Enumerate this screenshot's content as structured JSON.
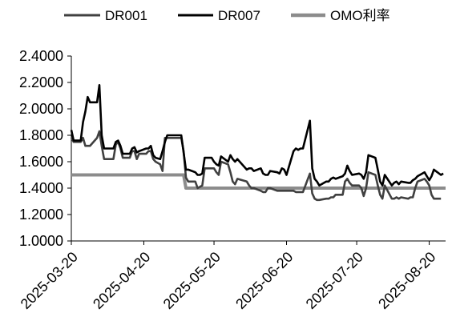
{
  "chart_data": {
    "type": "line",
    "title": "",
    "xlabel": "",
    "ylabel": "",
    "x_start": "2025-03-20",
    "x_end": "2025-08-27",
    "x_tick_labels": [
      "2025-03-20",
      "2025-04-20",
      "2025-05-20",
      "2025-06-20",
      "2025-07-20",
      "2025-08-20"
    ],
    "ylim": [
      1.0,
      2.4
    ],
    "y_tick_labels": [
      "1.0000",
      "1.2000",
      "1.4000",
      "1.6000",
      "1.8000",
      "2.0000",
      "2.2000",
      "2.4000"
    ],
    "grid": false,
    "legend": "top",
    "series": [
      {
        "name": "DR001",
        "color": "#404040",
        "points": [
          [
            "2025-03-20",
            1.78
          ],
          [
            "2025-03-21",
            1.75
          ],
          [
            "2025-03-24",
            1.75
          ],
          [
            "2025-03-25",
            1.78
          ],
          [
            "2025-03-26",
            1.72
          ],
          [
            "2025-03-27",
            1.72
          ],
          [
            "2025-03-28",
            1.72
          ],
          [
            "2025-03-31",
            1.78
          ],
          [
            "2025-04-01",
            1.83
          ],
          [
            "2025-04-02",
            1.72
          ],
          [
            "2025-04-03",
            1.62
          ],
          [
            "2025-04-07",
            1.62
          ],
          [
            "2025-04-08",
            1.73
          ],
          [
            "2025-04-09",
            1.75
          ],
          [
            "2025-04-10",
            1.7
          ],
          [
            "2025-04-11",
            1.63
          ],
          [
            "2025-04-14",
            1.63
          ],
          [
            "2025-04-15",
            1.68
          ],
          [
            "2025-04-16",
            1.68
          ],
          [
            "2025-04-17",
            1.62
          ],
          [
            "2025-04-18",
            1.66
          ],
          [
            "2025-04-21",
            1.66
          ],
          [
            "2025-04-22",
            1.68
          ],
          [
            "2025-04-23",
            1.68
          ],
          [
            "2025-04-24",
            1.62
          ],
          [
            "2025-04-25",
            1.6
          ],
          [
            "2025-04-27",
            1.58
          ],
          [
            "2025-04-28",
            1.53
          ],
          [
            "2025-04-29",
            1.78
          ],
          [
            "2025-04-30",
            1.78
          ],
          [
            "2025-05-06",
            1.78
          ],
          [
            "2025-05-07",
            1.68
          ],
          [
            "2025-05-08",
            1.48
          ],
          [
            "2025-05-09",
            1.45
          ],
          [
            "2025-05-12",
            1.45
          ],
          [
            "2025-05-13",
            1.4
          ],
          [
            "2025-05-14",
            1.41
          ],
          [
            "2025-05-15",
            1.42
          ],
          [
            "2025-05-16",
            1.55
          ],
          [
            "2025-05-19",
            1.55
          ],
          [
            "2025-05-20",
            1.55
          ],
          [
            "2025-05-21",
            1.52
          ],
          [
            "2025-05-22",
            1.5
          ],
          [
            "2025-05-23",
            1.6
          ],
          [
            "2025-05-26",
            1.58
          ],
          [
            "2025-05-27",
            1.52
          ],
          [
            "2025-05-28",
            1.45
          ],
          [
            "2025-05-29",
            1.43
          ],
          [
            "2025-05-30",
            1.47
          ],
          [
            "2025-06-03",
            1.45
          ],
          [
            "2025-06-04",
            1.42
          ],
          [
            "2025-06-05",
            1.4
          ],
          [
            "2025-06-06",
            1.4
          ],
          [
            "2025-06-09",
            1.38
          ],
          [
            "2025-06-10",
            1.37
          ],
          [
            "2025-06-11",
            1.37
          ],
          [
            "2025-06-12",
            1.4
          ],
          [
            "2025-06-13",
            1.4
          ],
          [
            "2025-06-16",
            1.38
          ],
          [
            "2025-06-17",
            1.38
          ],
          [
            "2025-06-18",
            1.38
          ],
          [
            "2025-06-19",
            1.38
          ],
          [
            "2025-06-20",
            1.38
          ],
          [
            "2025-06-23",
            1.38
          ],
          [
            "2025-06-24",
            1.37
          ],
          [
            "2025-06-25",
            1.37
          ],
          [
            "2025-06-26",
            1.37
          ],
          [
            "2025-06-27",
            1.37
          ],
          [
            "2025-06-30",
            1.51
          ],
          [
            "2025-07-01",
            1.36
          ],
          [
            "2025-07-02",
            1.32
          ],
          [
            "2025-07-03",
            1.31
          ],
          [
            "2025-07-04",
            1.31
          ],
          [
            "2025-07-07",
            1.32
          ],
          [
            "2025-07-08",
            1.32
          ],
          [
            "2025-07-09",
            1.33
          ],
          [
            "2025-07-10",
            1.33
          ],
          [
            "2025-07-11",
            1.35
          ],
          [
            "2025-07-14",
            1.35
          ],
          [
            "2025-07-15",
            1.45
          ],
          [
            "2025-07-16",
            1.47
          ],
          [
            "2025-07-17",
            1.44
          ],
          [
            "2025-07-18",
            1.42
          ],
          [
            "2025-07-21",
            1.42
          ],
          [
            "2025-07-22",
            1.4
          ],
          [
            "2025-07-23",
            1.34
          ],
          [
            "2025-07-24",
            1.4
          ],
          [
            "2025-07-25",
            1.52
          ],
          [
            "2025-07-28",
            1.5
          ],
          [
            "2025-07-29",
            1.42
          ],
          [
            "2025-07-30",
            1.35
          ],
          [
            "2025-07-31",
            1.32
          ],
          [
            "2025-08-01",
            1.42
          ],
          [
            "2025-08-04",
            1.32
          ],
          [
            "2025-08-05",
            1.32
          ],
          [
            "2025-08-06",
            1.33
          ],
          [
            "2025-08-07",
            1.32
          ],
          [
            "2025-08-08",
            1.33
          ],
          [
            "2025-08-11",
            1.32
          ],
          [
            "2025-08-12",
            1.33
          ],
          [
            "2025-08-13",
            1.33
          ],
          [
            "2025-08-14",
            1.4
          ],
          [
            "2025-08-15",
            1.45
          ],
          [
            "2025-08-18",
            1.47
          ],
          [
            "2025-08-19",
            1.45
          ],
          [
            "2025-08-20",
            1.42
          ],
          [
            "2025-08-21",
            1.35
          ],
          [
            "2025-08-22",
            1.32
          ],
          [
            "2025-08-25",
            1.32
          ]
        ]
      },
      {
        "name": "DR007",
        "color": "#000000",
        "points": [
          [
            "2025-03-20",
            1.84
          ],
          [
            "2025-03-21",
            1.76
          ],
          [
            "2025-03-24",
            1.76
          ],
          [
            "2025-03-25",
            1.9
          ],
          [
            "2025-03-26",
            1.98
          ],
          [
            "2025-03-27",
            2.09
          ],
          [
            "2025-03-28",
            2.05
          ],
          [
            "2025-03-31",
            2.05
          ],
          [
            "2025-04-01",
            2.18
          ],
          [
            "2025-04-02",
            1.8
          ],
          [
            "2025-04-03",
            1.7
          ],
          [
            "2025-04-07",
            1.7
          ],
          [
            "2025-04-08",
            1.75
          ],
          [
            "2025-04-09",
            1.76
          ],
          [
            "2025-04-10",
            1.72
          ],
          [
            "2025-04-11",
            1.66
          ],
          [
            "2025-04-14",
            1.66
          ],
          [
            "2025-04-15",
            1.7
          ],
          [
            "2025-04-16",
            1.71
          ],
          [
            "2025-04-17",
            1.67
          ],
          [
            "2025-04-18",
            1.68
          ],
          [
            "2025-04-21",
            1.7
          ],
          [
            "2025-04-22",
            1.7
          ],
          [
            "2025-04-23",
            1.72
          ],
          [
            "2025-04-24",
            1.65
          ],
          [
            "2025-04-25",
            1.63
          ],
          [
            "2025-04-27",
            1.62
          ],
          [
            "2025-04-28",
            1.68
          ],
          [
            "2025-04-29",
            1.75
          ],
          [
            "2025-04-30",
            1.8
          ],
          [
            "2025-05-06",
            1.8
          ],
          [
            "2025-05-07",
            1.67
          ],
          [
            "2025-05-08",
            1.54
          ],
          [
            "2025-05-09",
            1.54
          ],
          [
            "2025-05-12",
            1.52
          ],
          [
            "2025-05-13",
            1.5
          ],
          [
            "2025-05-14",
            1.5
          ],
          [
            "2025-05-15",
            1.51
          ],
          [
            "2025-05-16",
            1.63
          ],
          [
            "2025-05-19",
            1.63
          ],
          [
            "2025-05-20",
            1.6
          ],
          [
            "2025-05-21",
            1.58
          ],
          [
            "2025-05-22",
            1.57
          ],
          [
            "2025-05-23",
            1.64
          ],
          [
            "2025-05-26",
            1.6
          ],
          [
            "2025-05-27",
            1.65
          ],
          [
            "2025-05-28",
            1.62
          ],
          [
            "2025-05-29",
            1.6
          ],
          [
            "2025-05-30",
            1.62
          ],
          [
            "2025-06-03",
            1.54
          ],
          [
            "2025-06-04",
            1.55
          ],
          [
            "2025-06-05",
            1.55
          ],
          [
            "2025-06-06",
            1.53
          ],
          [
            "2025-06-09",
            1.55
          ],
          [
            "2025-06-10",
            1.51
          ],
          [
            "2025-06-11",
            1.5
          ],
          [
            "2025-06-12",
            1.5
          ],
          [
            "2025-06-13",
            1.53
          ],
          [
            "2025-06-16",
            1.52
          ],
          [
            "2025-06-17",
            1.51
          ],
          [
            "2025-06-18",
            1.55
          ],
          [
            "2025-06-19",
            1.54
          ],
          [
            "2025-06-20",
            1.5
          ],
          [
            "2025-06-23",
            1.68
          ],
          [
            "2025-06-24",
            1.7
          ],
          [
            "2025-06-25",
            1.69
          ],
          [
            "2025-06-26",
            1.7
          ],
          [
            "2025-06-27",
            1.7
          ],
          [
            "2025-06-30",
            1.91
          ],
          [
            "2025-07-01",
            1.55
          ],
          [
            "2025-07-02",
            1.47
          ],
          [
            "2025-07-03",
            1.45
          ],
          [
            "2025-07-04",
            1.42
          ],
          [
            "2025-07-07",
            1.45
          ],
          [
            "2025-07-08",
            1.45
          ],
          [
            "2025-07-09",
            1.47
          ],
          [
            "2025-07-10",
            1.48
          ],
          [
            "2025-07-11",
            1.47
          ],
          [
            "2025-07-14",
            1.49
          ],
          [
            "2025-07-15",
            1.51
          ],
          [
            "2025-07-16",
            1.57
          ],
          [
            "2025-07-17",
            1.53
          ],
          [
            "2025-07-18",
            1.5
          ],
          [
            "2025-07-21",
            1.51
          ],
          [
            "2025-07-22",
            1.5
          ],
          [
            "2025-07-23",
            1.47
          ],
          [
            "2025-07-24",
            1.52
          ],
          [
            "2025-07-25",
            1.65
          ],
          [
            "2025-07-28",
            1.63
          ],
          [
            "2025-07-29",
            1.54
          ],
          [
            "2025-07-30",
            1.45
          ],
          [
            "2025-07-31",
            1.42
          ],
          [
            "2025-08-01",
            1.5
          ],
          [
            "2025-08-04",
            1.42
          ],
          [
            "2025-08-05",
            1.44
          ],
          [
            "2025-08-06",
            1.45
          ],
          [
            "2025-08-07",
            1.43
          ],
          [
            "2025-08-08",
            1.45
          ],
          [
            "2025-08-11",
            1.44
          ],
          [
            "2025-08-12",
            1.44
          ],
          [
            "2025-08-13",
            1.46
          ],
          [
            "2025-08-14",
            1.47
          ],
          [
            "2025-08-15",
            1.49
          ],
          [
            "2025-08-18",
            1.52
          ],
          [
            "2025-08-19",
            1.49
          ],
          [
            "2025-08-20",
            1.46
          ],
          [
            "2025-08-21",
            1.49
          ],
          [
            "2025-08-22",
            1.54
          ],
          [
            "2025-08-25",
            1.5
          ],
          [
            "2025-08-26",
            1.51
          ]
        ]
      },
      {
        "name": "OMO利率",
        "color": "#8c8c8c",
        "points": [
          [
            "2025-03-20",
            1.5
          ],
          [
            "2025-05-07",
            1.5
          ],
          [
            "2025-05-08",
            1.4
          ],
          [
            "2025-08-27",
            1.4
          ]
        ]
      }
    ]
  }
}
